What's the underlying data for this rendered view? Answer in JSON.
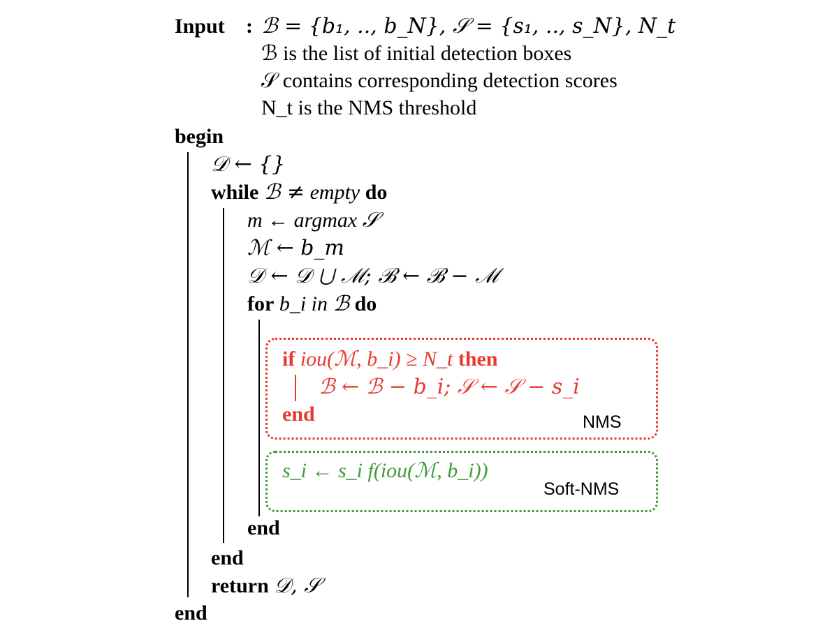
{
  "algorithm": {
    "input_keyword": "Input",
    "input_colon": ":",
    "input_sets": "ℬ = {b₁, .., b_N}, 𝒮 = {s₁, .., s_N}, N_t",
    "input_desc_1": "ℬ is the list of initial detection boxes",
    "input_desc_2": "𝒮 contains corresponding detection scores",
    "input_desc_3": "N_t is the NMS threshold",
    "begin": "begin",
    "init_D": "𝒟 ← {}",
    "while_keyword": "while",
    "while_cond": "ℬ ≠",
    "while_empty": "empty",
    "do_keyword": "do",
    "argmax_line": "m ← argmax 𝒮",
    "assign_M": "ℳ ← b_m",
    "update_D": "𝒟 ← 𝒟 ⋃ ℳ; ℬ ← ℬ − ℳ",
    "for_keyword": "for",
    "for_cond": "b_i in ℬ",
    "nms_if_keyword": "if",
    "nms_if_cond": "iou(ℳ, b_i) ≥ N_t",
    "nms_then_keyword": "then",
    "nms_body": "ℬ ← ℬ − b_i; 𝒮 ← 𝒮 − s_i",
    "nms_end": "end",
    "nms_label": "NMS",
    "soft_body": "s_i ← s_i f(iou(ℳ, b_i))",
    "soft_label": "Soft-NMS",
    "for_end": "end",
    "while_end": "end",
    "return_keyword": "return",
    "return_value": "𝒟, 𝒮",
    "final_end": "end"
  },
  "colors": {
    "nms": "#e8392f",
    "soft_nms": "#3f9b3a",
    "text": "#000000"
  }
}
